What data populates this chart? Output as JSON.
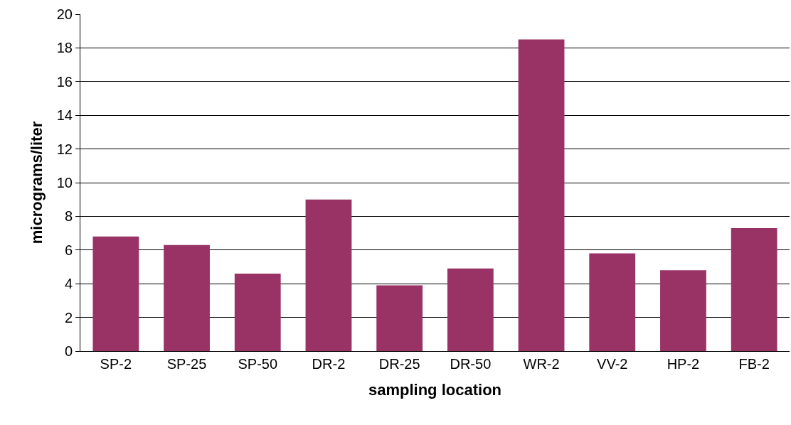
{
  "chart_data": {
    "type": "bar",
    "xlabel": "sampling location",
    "ylabel": "micrograms/liter",
    "categories": [
      "SP-2",
      "SP-25",
      "SP-50",
      "DR-2",
      "DR-25",
      "DR-50",
      "WR-2",
      "VV-2",
      "HP-2",
      "FB-2"
    ],
    "values": [
      6.8,
      6.3,
      4.6,
      9.0,
      3.9,
      4.9,
      18.5,
      5.8,
      4.8,
      7.3
    ],
    "color": "#993366",
    "ylim": [
      0,
      20
    ],
    "yticks": [
      0,
      2,
      4,
      6,
      8,
      10,
      12,
      14,
      16,
      18,
      20
    ],
    "grid": "y"
  }
}
